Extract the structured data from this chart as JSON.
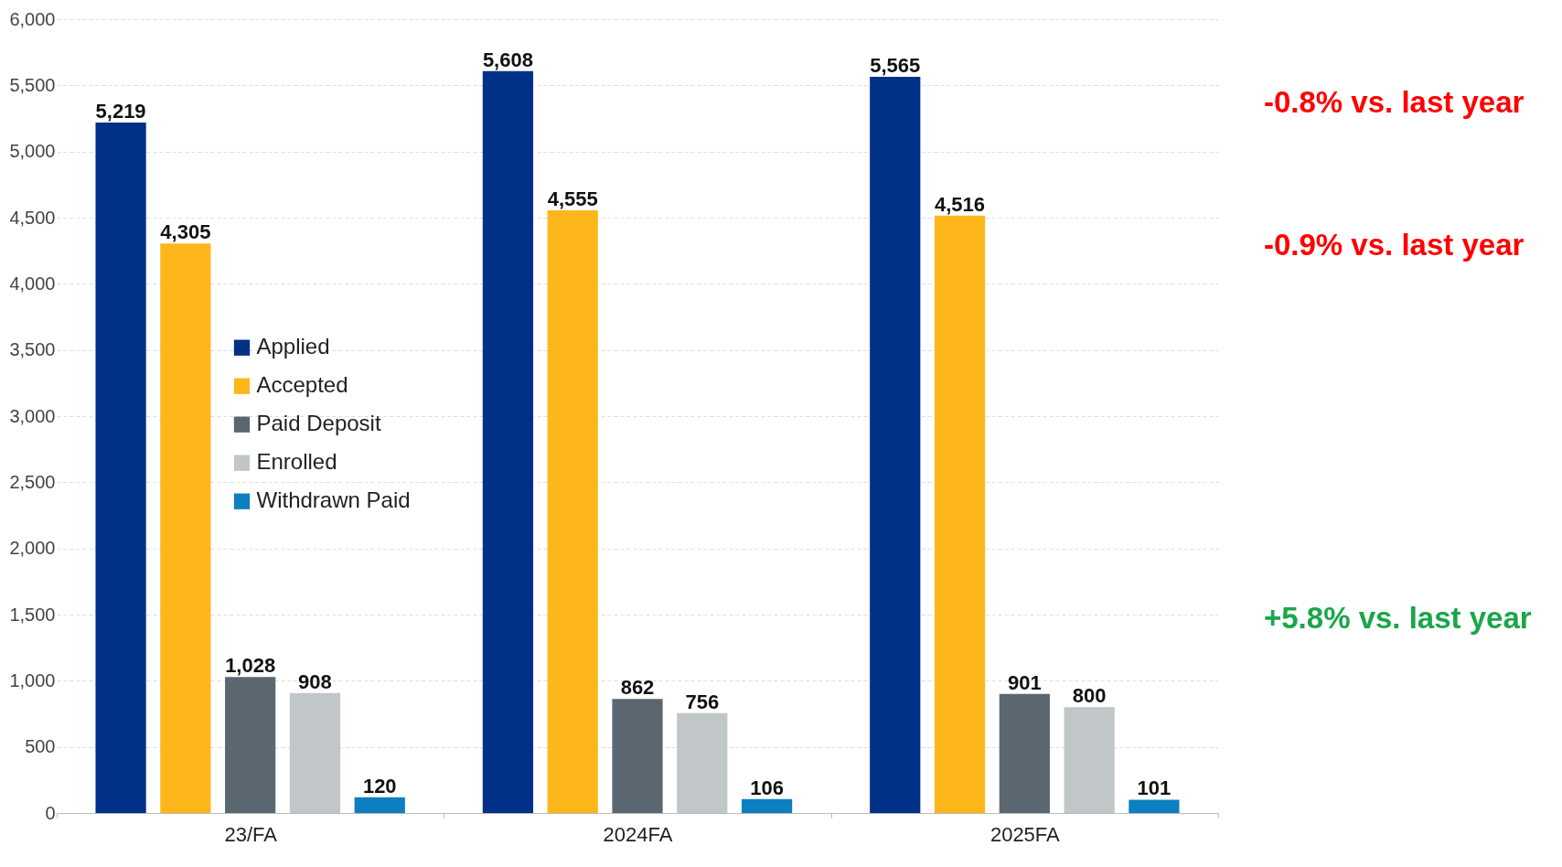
{
  "chart_data": {
    "type": "bar",
    "categories": [
      "23/FA",
      "2024FA",
      "2025FA"
    ],
    "series": [
      {
        "name": "Applied",
        "color": "#003087",
        "values": [
          5219,
          5608,
          5565
        ],
        "value_labels": [
          "5,219",
          "5,608",
          "5,565"
        ]
      },
      {
        "name": "Accepted",
        "color": "#fdb71a",
        "values": [
          4305,
          4555,
          4516
        ],
        "value_labels": [
          "4,305",
          "4,555",
          "4,516"
        ]
      },
      {
        "name": "Paid Deposit",
        "color": "#5b6770",
        "values": [
          1028,
          862,
          901
        ],
        "value_labels": [
          "1,028",
          "862",
          "901"
        ]
      },
      {
        "name": "Enrolled",
        "color": "#c1c6c8",
        "values": [
          908,
          756,
          800
        ],
        "value_labels": [
          "908",
          "756",
          "800"
        ]
      },
      {
        "name": "Withdrawn Paid",
        "color": "#0b7fc0",
        "values": [
          120,
          106,
          101
        ],
        "value_labels": [
          "120",
          "106",
          "101"
        ]
      }
    ],
    "ylim": [
      0,
      6000
    ],
    "yticks": [
      0,
      {
        "value": 500,
        "label": "500"
      },
      {
        "value": 1000,
        "label": "1,000"
      },
      {
        "value": 1500,
        "label": "1,500"
      },
      {
        "value": 2000,
        "label": "2,000"
      },
      {
        "value": 2500,
        "label": "2,500"
      },
      {
        "value": 3000,
        "label": "3,000"
      },
      {
        "value": 3500,
        "label": "3,500"
      },
      {
        "value": 4000,
        "label": "4,000"
      },
      {
        "value": 4500,
        "label": "4,500"
      },
      {
        "value": 5000,
        "label": "5,000"
      },
      {
        "value": 5500,
        "label": "5,500"
      },
      {
        "value": 6000,
        "label": "6,000"
      }
    ],
    "grid": "y",
    "legend": "left",
    "annotations": [
      "-0.8% vs. last year",
      "-0.9% vs. last year",
      "+5.8% vs. last year"
    ]
  }
}
